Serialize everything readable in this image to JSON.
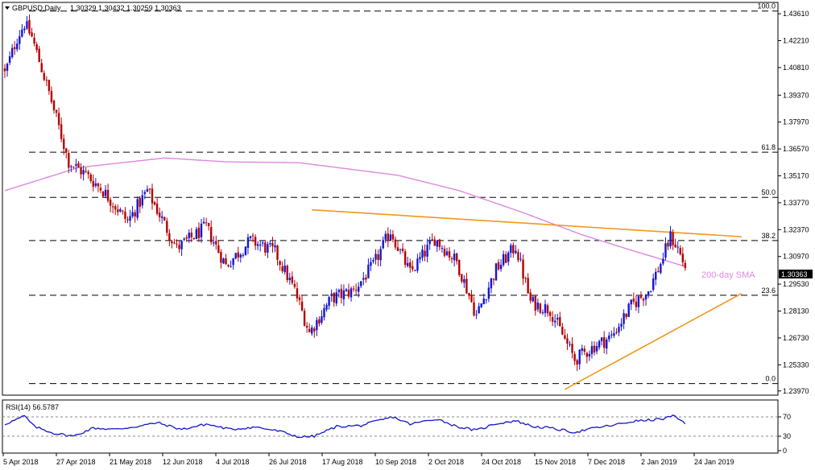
{
  "header": {
    "symbol": "GBPUSD,Daily",
    "ohlc": "1.30329 1.30432 1.30259 1.30363"
  },
  "rsi_header": {
    "label": "RSI(14) 56.5787"
  },
  "sma_label": "200-day SMA",
  "current_price": "1.30363",
  "colors": {
    "bull": "#1414d2",
    "bear": "#b40000",
    "sma": "#dd88dd",
    "trendline": "#f0961e",
    "rsi": "#1414c8",
    "price_tag_bg": "#000000",
    "price_tag_text": "#ffffff"
  },
  "chart_data": [
    {
      "type": "candlestick",
      "title": "GBPUSD,Daily",
      "x_tick_labels": [
        "5 Apr 2018",
        "27 Apr 2018",
        "21 May 2018",
        "12 Jun 2018",
        "4 Jul 2018",
        "26 Jul 2018",
        "17 Aug 2018",
        "10 Sep 2018",
        "2 Oct 2018",
        "24 Oct 2018",
        "15 Nov 2018",
        "7 Dec 2018",
        "2 Jan 2019",
        "24 Jan 2019"
      ],
      "y_tick_labels": [
        "1.43610",
        "1.42210",
        "1.40810",
        "1.39370",
        "1.37970",
        "1.36570",
        "1.35170",
        "1.33770",
        "1.32370",
        "1.30970",
        "1.29530",
        "1.28130",
        "1.26730",
        "1.25330",
        "1.23970"
      ],
      "ylim": [
        1.2375,
        1.442
      ],
      "fibonacci": [
        {
          "label": "100.0",
          "value": 1.4375
        },
        {
          "label": "61.8",
          "value": 1.364
        },
        {
          "label": "50.0",
          "value": 1.3405
        },
        {
          "label": "38.2",
          "value": 1.318
        },
        {
          "label": "23.6",
          "value": 1.2895
        },
        {
          "label": "0.0",
          "value": 1.2435
        }
      ],
      "close_keypoints": [
        {
          "i": 0,
          "c": 1.405
        },
        {
          "i": 5,
          "c": 1.4235
        },
        {
          "i": 8,
          "c": 1.431
        },
        {
          "i": 11,
          "c": 1.424
        },
        {
          "i": 18,
          "c": 1.395
        },
        {
          "i": 26,
          "c": 1.359
        },
        {
          "i": 33,
          "c": 1.3525
        },
        {
          "i": 40,
          "c": 1.344
        },
        {
          "i": 50,
          "c": 1.328
        },
        {
          "i": 58,
          "c": 1.344
        },
        {
          "i": 70,
          "c": 1.314
        },
        {
          "i": 82,
          "c": 1.325
        },
        {
          "i": 90,
          "c": 1.305
        },
        {
          "i": 100,
          "c": 1.318
        },
        {
          "i": 110,
          "c": 1.312
        },
        {
          "i": 118,
          "c": 1.292
        },
        {
          "i": 124,
          "c": 1.27
        },
        {
          "i": 133,
          "c": 1.288
        },
        {
          "i": 142,
          "c": 1.292
        },
        {
          "i": 150,
          "c": 1.305
        },
        {
          "i": 157,
          "c": 1.323
        },
        {
          "i": 165,
          "c": 1.301
        },
        {
          "i": 175,
          "c": 1.319
        },
        {
          "i": 184,
          "c": 1.307
        },
        {
          "i": 192,
          "c": 1.279
        },
        {
          "i": 200,
          "c": 1.303
        },
        {
          "i": 208,
          "c": 1.315
        },
        {
          "i": 214,
          "c": 1.286
        },
        {
          "i": 222,
          "c": 1.282
        },
        {
          "i": 232,
          "c": 1.256
        },
        {
          "i": 240,
          "c": 1.263
        },
        {
          "i": 247,
          "c": 1.268
        },
        {
          "i": 255,
          "c": 1.284
        },
        {
          "i": 262,
          "c": 1.292
        },
        {
          "i": 267,
          "c": 1.306
        },
        {
          "i": 271,
          "c": 1.32
        },
        {
          "i": 274,
          "c": 1.314
        },
        {
          "i": 277,
          "c": 1.3036
        }
      ],
      "sma_200": [
        {
          "i": 0,
          "v": 1.344
        },
        {
          "i": 30,
          "v": 1.356
        },
        {
          "i": 65,
          "v": 1.361
        },
        {
          "i": 90,
          "v": 1.359
        },
        {
          "i": 120,
          "v": 1.3585
        },
        {
          "i": 160,
          "v": 1.352
        },
        {
          "i": 185,
          "v": 1.344
        },
        {
          "i": 210,
          "v": 1.333
        },
        {
          "i": 235,
          "v": 1.321
        },
        {
          "i": 255,
          "v": 1.313
        },
        {
          "i": 277,
          "v": 1.3045
        }
      ],
      "trendlines": [
        {
          "name": "resistance",
          "from": {
            "i": 125,
            "v": 1.334
          },
          "to": {
            "i": 300,
            "v": 1.32
          }
        },
        {
          "name": "support",
          "from": {
            "i": 228,
            "v": 1.2405
          },
          "to": {
            "i": 300,
            "v": 1.2905
          }
        }
      ],
      "series": [
        {
          "name": "GBPUSD",
          "last_close": 1.30363
        }
      ]
    },
    {
      "type": "line",
      "title": "RSI(14) 56.5787",
      "y_tick_labels": [
        "70",
        "30",
        "0"
      ],
      "ylim": [
        0,
        100
      ],
      "levels": [
        70,
        30
      ],
      "rsi_keypoints": [
        {
          "i": 0,
          "v": 55
        },
        {
          "i": 5,
          "v": 65
        },
        {
          "i": 8,
          "v": 72
        },
        {
          "i": 12,
          "v": 50
        },
        {
          "i": 20,
          "v": 36
        },
        {
          "i": 28,
          "v": 30
        },
        {
          "i": 36,
          "v": 47
        },
        {
          "i": 45,
          "v": 44
        },
        {
          "i": 55,
          "v": 51
        },
        {
          "i": 62,
          "v": 58
        },
        {
          "i": 72,
          "v": 44
        },
        {
          "i": 82,
          "v": 55
        },
        {
          "i": 92,
          "v": 44
        },
        {
          "i": 102,
          "v": 49
        },
        {
          "i": 112,
          "v": 40
        },
        {
          "i": 120,
          "v": 28
        },
        {
          "i": 126,
          "v": 30
        },
        {
          "i": 135,
          "v": 50
        },
        {
          "i": 145,
          "v": 52
        },
        {
          "i": 152,
          "v": 62
        },
        {
          "i": 158,
          "v": 70
        },
        {
          "i": 165,
          "v": 55
        },
        {
          "i": 176,
          "v": 66
        },
        {
          "i": 184,
          "v": 50
        },
        {
          "i": 192,
          "v": 42
        },
        {
          "i": 200,
          "v": 56
        },
        {
          "i": 208,
          "v": 62
        },
        {
          "i": 215,
          "v": 50
        },
        {
          "i": 222,
          "v": 47
        },
        {
          "i": 232,
          "v": 38
        },
        {
          "i": 240,
          "v": 47
        },
        {
          "i": 248,
          "v": 53
        },
        {
          "i": 256,
          "v": 61
        },
        {
          "i": 262,
          "v": 63
        },
        {
          "i": 268,
          "v": 66
        },
        {
          "i": 272,
          "v": 72
        },
        {
          "i": 275,
          "v": 63
        },
        {
          "i": 277,
          "v": 57
        }
      ]
    }
  ]
}
